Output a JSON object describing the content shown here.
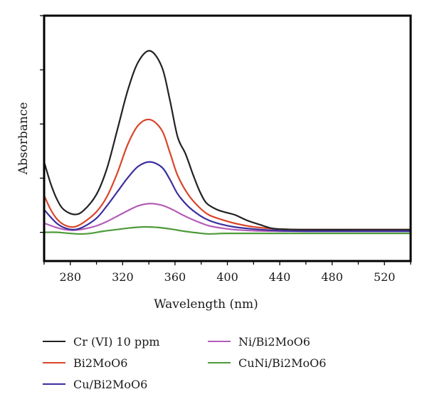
{
  "chart_data": {
    "type": "line",
    "title": "",
    "xlabel": "Wavelength (nm)",
    "ylabel": "Absorbance",
    "xlim": [
      260,
      540
    ],
    "ylim": [
      -0.53,
      4.0
    ],
    "xticks": [
      280,
      320,
      360,
      400,
      440,
      480,
      520
    ],
    "xminor_ticks": [
      260,
      300,
      340,
      380,
      420,
      460,
      500,
      540
    ],
    "yticks": [
      0,
      1,
      2,
      3,
      4
    ],
    "ytick_labels_shown": false,
    "grid": false,
    "legend_position": "bottom",
    "series": [
      {
        "name": "Cr (VI) 10 ppm",
        "color": "#222222",
        "x": [
          260,
          265,
          270,
          275,
          283,
          290,
          300,
          308,
          316,
          324,
          332,
          341,
          350,
          356,
          362,
          368,
          374,
          379,
          384,
          392,
          400,
          406,
          415,
          425,
          433,
          440,
          460,
          500,
          540
        ],
        "y": [
          1.3,
          0.9,
          0.6,
          0.42,
          0.33,
          0.4,
          0.7,
          1.18,
          1.9,
          2.63,
          3.15,
          3.35,
          3.05,
          2.45,
          1.76,
          1.45,
          1.05,
          0.75,
          0.54,
          0.42,
          0.36,
          0.32,
          0.22,
          0.14,
          0.08,
          0.06,
          0.05,
          0.05,
          0.05
        ]
      },
      {
        "name": "Bi2MoO6",
        "color": "#d9452b",
        "x": [
          260,
          265,
          270,
          276,
          283,
          290,
          300,
          308,
          316,
          324,
          332,
          341,
          350,
          356,
          362,
          370,
          379,
          386,
          395,
          405,
          420,
          440,
          460,
          500,
          540
        ],
        "y": [
          0.68,
          0.42,
          0.24,
          0.13,
          0.1,
          0.18,
          0.38,
          0.66,
          1.1,
          1.63,
          1.98,
          2.08,
          1.88,
          1.48,
          1.05,
          0.7,
          0.45,
          0.32,
          0.24,
          0.17,
          0.1,
          0.06,
          0.05,
          0.05,
          0.05
        ]
      },
      {
        "name": "Cu/Bi2MoO6",
        "color": "#3a2f9e",
        "x": [
          260,
          265,
          270,
          276,
          283,
          290,
          300,
          308,
          316,
          324,
          332,
          341,
          350,
          356,
          362,
          370,
          379,
          386,
          395,
          405,
          420,
          440,
          460,
          500,
          540
        ],
        "y": [
          0.42,
          0.28,
          0.16,
          0.08,
          0.05,
          0.1,
          0.26,
          0.49,
          0.75,
          1.01,
          1.22,
          1.3,
          1.2,
          0.98,
          0.71,
          0.48,
          0.31,
          0.22,
          0.15,
          0.1,
          0.06,
          0.03,
          0.02,
          0.02,
          0.02
        ]
      },
      {
        "name": "Ni/Bi2MoO6",
        "color": "#b55db8",
        "x": [
          260,
          268,
          276,
          283,
          290,
          300,
          308,
          316,
          324,
          332,
          341,
          350,
          358,
          365,
          372,
          379,
          386,
          395,
          405,
          420,
          440,
          460,
          500,
          540
        ],
        "y": [
          0.17,
          0.1,
          0.05,
          0.04,
          0.06,
          0.12,
          0.2,
          0.3,
          0.4,
          0.49,
          0.53,
          0.5,
          0.42,
          0.33,
          0.25,
          0.18,
          0.12,
          0.08,
          0.05,
          0.03,
          0.02,
          0.02,
          0.02,
          0.02
        ]
      },
      {
        "name": "CuNi/Bi2MoO6",
        "color": "#4f9a3a",
        "x": [
          260,
          270,
          280,
          287,
          295,
          305,
          315,
          325,
          337,
          347,
          357,
          367,
          377,
          386,
          400,
          440,
          480,
          540
        ],
        "y": [
          0.0,
          0.0,
          -0.02,
          -0.03,
          -0.02,
          0.02,
          0.05,
          0.08,
          0.1,
          0.09,
          0.06,
          0.02,
          -0.01,
          -0.03,
          -0.02,
          -0.02,
          -0.02,
          -0.02
        ]
      }
    ]
  }
}
